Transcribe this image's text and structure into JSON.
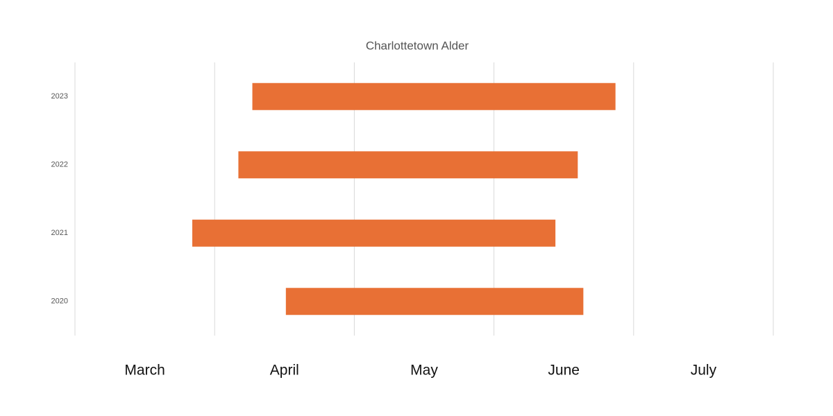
{
  "chart_data": {
    "type": "floating-bar",
    "title": "Charlottetown Alder",
    "categories": [
      "2020",
      "2021",
      "2022",
      "2023"
    ],
    "start": [
      1.51,
      0.84,
      1.17,
      1.27
    ],
    "end": [
      3.64,
      3.44,
      3.6,
      3.87
    ],
    "color": "#e87035",
    "x_categories": [
      "March",
      "April",
      "May",
      "June",
      "July"
    ],
    "xlim": [
      0,
      5
    ],
    "xticks": [
      0,
      1,
      2,
      3,
      4,
      5
    ],
    "grid": true
  }
}
